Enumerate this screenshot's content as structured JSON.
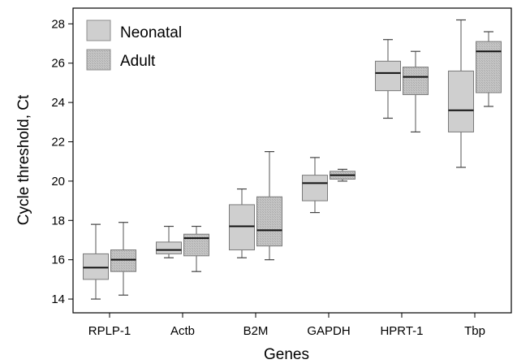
{
  "chart_data": {
    "type": "boxplot",
    "xlabel": "Genes",
    "ylabel": "Cycle threshold, Ct",
    "ylim": [
      13.3,
      28.8
    ],
    "yticks": [
      14,
      16,
      18,
      20,
      22,
      24,
      26,
      28
    ],
    "categories": [
      "RPLP-1",
      "Actb",
      "B2M",
      "GAPDH",
      "HPRT-1",
      "Tbp"
    ],
    "grid": false,
    "legend_position": "top-left",
    "colors": {
      "neonatal": "#cfcfcf",
      "adult": "#bdbdbd",
      "axis": "#000000",
      "whisker": "#555555"
    },
    "series": [
      {
        "name": "Neonatal",
        "boxes": [
          {
            "min": 14.0,
            "q1": 15.0,
            "median": 15.6,
            "q3": 16.3,
            "max": 17.8
          },
          {
            "min": 16.1,
            "q1": 16.3,
            "median": 16.5,
            "q3": 16.9,
            "max": 17.7
          },
          {
            "min": 16.1,
            "q1": 16.5,
            "median": 17.7,
            "q3": 18.8,
            "max": 19.6
          },
          {
            "min": 18.4,
            "q1": 19.0,
            "median": 19.9,
            "q3": 20.3,
            "max": 21.2
          },
          {
            "min": 23.2,
            "q1": 24.6,
            "median": 25.5,
            "q3": 26.1,
            "max": 27.2
          },
          {
            "min": 20.7,
            "q1": 22.5,
            "median": 23.6,
            "q3": 25.6,
            "max": 28.2
          }
        ]
      },
      {
        "name": "Adult",
        "boxes": [
          {
            "min": 14.2,
            "q1": 15.4,
            "median": 16.0,
            "q3": 16.5,
            "max": 17.9
          },
          {
            "min": 15.4,
            "q1": 16.2,
            "median": 17.1,
            "q3": 17.3,
            "max": 17.7
          },
          {
            "min": 16.0,
            "q1": 16.7,
            "median": 17.5,
            "q3": 19.2,
            "max": 21.5
          },
          {
            "min": 20.0,
            "q1": 20.1,
            "median": 20.3,
            "q3": 20.5,
            "max": 20.6
          },
          {
            "min": 22.5,
            "q1": 24.4,
            "median": 25.3,
            "q3": 25.8,
            "max": 26.6
          },
          {
            "min": 23.8,
            "q1": 24.5,
            "median": 26.6,
            "q3": 27.1,
            "max": 27.6
          }
        ]
      }
    ]
  }
}
